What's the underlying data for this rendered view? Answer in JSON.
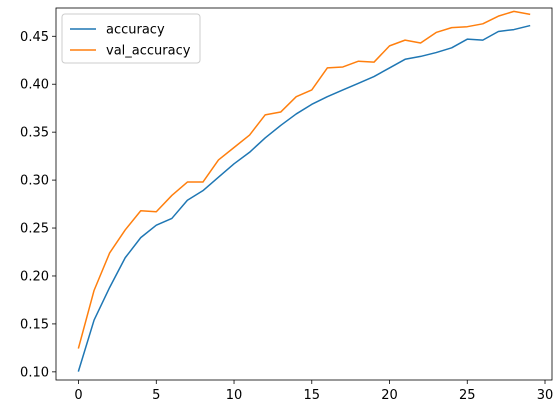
{
  "chart_data": {
    "type": "line",
    "title": "",
    "xlabel": "",
    "ylabel": "",
    "xlim": [
      -1.45,
      30.45
    ],
    "ylim": [
      0.0915,
      0.4795
    ],
    "x_ticks": [
      0,
      5,
      10,
      15,
      20,
      25,
      30
    ],
    "y_ticks": [
      0.1,
      0.15,
      0.2,
      0.25,
      0.3,
      0.35,
      0.4,
      0.45
    ],
    "x_tick_labels": [
      "0",
      "5",
      "10",
      "15",
      "20",
      "25",
      "30"
    ],
    "y_tick_labels": [
      "0.10",
      "0.15",
      "0.20",
      "0.25",
      "0.30",
      "0.35",
      "0.40",
      "0.45"
    ],
    "grid": false,
    "legend_position": "upper-left",
    "x": [
      0,
      1,
      2,
      3,
      4,
      5,
      6,
      7,
      8,
      9,
      10,
      11,
      12,
      13,
      14,
      15,
      16,
      17,
      18,
      19,
      20,
      21,
      22,
      23,
      24,
      25,
      26,
      27,
      28,
      29
    ],
    "series": [
      {
        "name": "accuracy",
        "color": "#1f77b4",
        "values": [
          0.101,
          0.154,
          0.188,
          0.219,
          0.24,
          0.253,
          0.26,
          0.279,
          0.289,
          0.303,
          0.317,
          0.329,
          0.344,
          0.357,
          0.369,
          0.379,
          0.387,
          0.394,
          0.401,
          0.408,
          0.417,
          0.426,
          0.429,
          0.433,
          0.438,
          0.447,
          0.446,
          0.455,
          0.457,
          0.461
        ]
      },
      {
        "name": "val_accuracy",
        "color": "#ff7f0e",
        "values": [
          0.125,
          0.185,
          0.224,
          0.248,
          0.268,
          0.267,
          0.284,
          0.298,
          0.298,
          0.321,
          0.334,
          0.347,
          0.368,
          0.371,
          0.387,
          0.394,
          0.417,
          0.418,
          0.424,
          0.423,
          0.44,
          0.446,
          0.443,
          0.454,
          0.459,
          0.46,
          0.463,
          0.471,
          0.476,
          0.473
        ]
      }
    ]
  }
}
